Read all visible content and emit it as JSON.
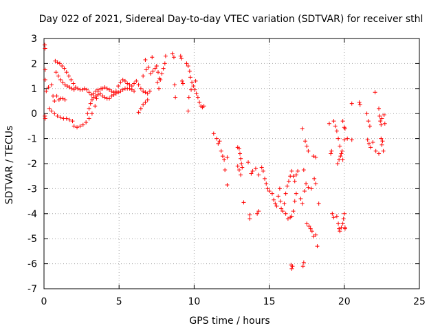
{
  "chart_data": {
    "type": "scatter",
    "title": "Day 022 of 2021, Sidereal Day-to-day VTEC variation (SDTVAR) for receiver sthl",
    "xlabel": "GPS time / hours",
    "ylabel": "SDTVAR / TECUs",
    "xlim": [
      0,
      25
    ],
    "ylim": [
      -7,
      3
    ],
    "xticks": [
      0,
      5,
      10,
      15,
      20,
      25
    ],
    "yticks": [
      -7,
      -6,
      -5,
      -4,
      -3,
      -2,
      -1,
      0,
      1,
      2,
      3
    ],
    "grid": true,
    "marker": "+",
    "series": [
      {
        "name": "SDTVAR",
        "color": "#ff0000",
        "points": [
          [
            0.05,
            2.75
          ],
          [
            0.07,
            2.6
          ],
          [
            0.08,
            1.75
          ],
          [
            0.08,
            1.35
          ],
          [
            0.06,
            -0.1
          ],
          [
            0.08,
            -0.2
          ],
          [
            0.15,
            0.9
          ],
          [
            0.3,
            1.05
          ],
          [
            0.5,
            1.15
          ],
          [
            0.6,
            0.7
          ],
          [
            0.7,
            0.5
          ],
          [
            0.85,
            0.7
          ],
          [
            1.0,
            0.55
          ],
          [
            1.1,
            0.6
          ],
          [
            1.25,
            0.6
          ],
          [
            1.4,
            0.55
          ],
          [
            0.35,
            0.2
          ],
          [
            0.5,
            0.1
          ],
          [
            0.7,
            0.0
          ],
          [
            0.9,
            -0.1
          ],
          [
            1.1,
            -0.15
          ],
          [
            1.3,
            -0.2
          ],
          [
            1.5,
            -0.2
          ],
          [
            1.7,
            -0.25
          ],
          [
            1.9,
            -0.3
          ],
          [
            2.0,
            -0.5
          ],
          [
            2.2,
            -0.55
          ],
          [
            2.4,
            -0.5
          ],
          [
            2.6,
            -0.45
          ],
          [
            2.8,
            -0.35
          ],
          [
            3.0,
            -0.2
          ],
          [
            3.2,
            0.0
          ],
          [
            3.4,
            0.3
          ],
          [
            3.5,
            0.6
          ],
          [
            3.6,
            0.9
          ],
          [
            3.8,
            1.0
          ],
          [
            0.75,
            2.1
          ],
          [
            0.9,
            2.05
          ],
          [
            1.05,
            2.0
          ],
          [
            1.2,
            1.9
          ],
          [
            1.35,
            1.8
          ],
          [
            1.5,
            1.65
          ],
          [
            1.65,
            1.5
          ],
          [
            1.8,
            1.35
          ],
          [
            1.95,
            1.2
          ],
          [
            2.1,
            1.05
          ],
          [
            2.25,
            1.0
          ],
          [
            2.4,
            0.95
          ],
          [
            2.55,
            0.95
          ],
          [
            2.7,
            1.0
          ],
          [
            2.85,
            0.95
          ],
          [
            3.0,
            0.85
          ],
          [
            3.15,
            0.75
          ],
          [
            3.3,
            0.8
          ],
          [
            3.45,
            0.9
          ],
          [
            3.6,
            0.95
          ],
          [
            0.8,
            1.65
          ],
          [
            0.95,
            1.5
          ],
          [
            1.1,
            1.35
          ],
          [
            1.25,
            1.25
          ],
          [
            1.4,
            1.15
          ],
          [
            1.55,
            1.1
          ],
          [
            1.7,
            1.05
          ],
          [
            1.85,
            1.0
          ],
          [
            2.0,
            0.95
          ],
          [
            2.9,
            0.0
          ],
          [
            3.0,
            0.2
          ],
          [
            3.1,
            0.4
          ],
          [
            3.2,
            0.55
          ],
          [
            3.3,
            0.65
          ],
          [
            3.45,
            0.7
          ],
          [
            3.6,
            0.75
          ],
          [
            3.75,
            0.8
          ],
          [
            3.9,
            0.7
          ],
          [
            4.05,
            0.65
          ],
          [
            4.2,
            0.6
          ],
          [
            4.35,
            0.6
          ],
          [
            4.5,
            0.7
          ],
          [
            4.65,
            0.75
          ],
          [
            4.8,
            0.8
          ],
          [
            4.95,
            0.85
          ],
          [
            5.1,
            0.9
          ],
          [
            5.25,
            0.95
          ],
          [
            5.4,
            1.0
          ],
          [
            5.55,
            1.0
          ],
          [
            5.7,
            1.0
          ],
          [
            5.85,
            0.95
          ],
          [
            6.0,
            0.9
          ],
          [
            3.9,
            1.0
          ],
          [
            4.05,
            1.05
          ],
          [
            4.2,
            1.0
          ],
          [
            4.35,
            0.95
          ],
          [
            4.5,
            0.9
          ],
          [
            4.65,
            0.85
          ],
          [
            4.8,
            0.9
          ],
          [
            4.95,
            1.1
          ],
          [
            5.1,
            1.25
          ],
          [
            5.25,
            1.35
          ],
          [
            5.4,
            1.3
          ],
          [
            5.55,
            1.2
          ],
          [
            5.7,
            1.15
          ],
          [
            5.85,
            1.1
          ],
          [
            6.0,
            1.2
          ],
          [
            6.15,
            1.3
          ],
          [
            6.3,
            1.15
          ],
          [
            6.45,
            1.0
          ],
          [
            6.6,
            0.9
          ],
          [
            6.75,
            0.85
          ],
          [
            6.9,
            0.8
          ],
          [
            7.05,
            0.9
          ],
          [
            6.3,
            0.05
          ],
          [
            6.45,
            0.2
          ],
          [
            6.6,
            0.35
          ],
          [
            6.75,
            0.45
          ],
          [
            6.9,
            0.55
          ],
          [
            6.6,
            1.5
          ],
          [
            6.8,
            1.75
          ],
          [
            6.95,
            1.85
          ],
          [
            7.1,
            1.6
          ],
          [
            7.25,
            1.7
          ],
          [
            7.4,
            1.8
          ],
          [
            7.5,
            1.9
          ],
          [
            7.6,
            1.65
          ],
          [
            7.7,
            1.4
          ],
          [
            7.85,
            1.6
          ],
          [
            7.95,
            1.8
          ],
          [
            8.05,
            2.0
          ],
          [
            6.75,
            2.15
          ],
          [
            7.2,
            2.25
          ],
          [
            7.55,
            1.25
          ],
          [
            7.65,
            1.0
          ],
          [
            7.75,
            1.35
          ],
          [
            8.1,
            2.3
          ],
          [
            8.55,
            2.4
          ],
          [
            8.65,
            2.25
          ],
          [
            8.7,
            1.15
          ],
          [
            8.75,
            0.65
          ],
          [
            9.1,
            2.3
          ],
          [
            9.15,
            2.2
          ],
          [
            9.2,
            1.3
          ],
          [
            9.25,
            1.2
          ],
          [
            9.5,
            2.0
          ],
          [
            9.6,
            1.9
          ],
          [
            9.7,
            1.7
          ],
          [
            9.75,
            1.45
          ],
          [
            9.85,
            1.25
          ],
          [
            9.95,
            1.1
          ],
          [
            10.05,
            0.95
          ],
          [
            10.15,
            0.8
          ],
          [
            10.25,
            0.65
          ],
          [
            10.35,
            0.45
          ],
          [
            10.45,
            0.3
          ],
          [
            10.55,
            0.25
          ],
          [
            10.65,
            0.3
          ],
          [
            9.65,
            0.65
          ],
          [
            9.8,
            0.95
          ],
          [
            10.1,
            1.3
          ],
          [
            9.6,
            0.1
          ],
          [
            11.3,
            -0.8
          ],
          [
            11.5,
            -1.0
          ],
          [
            11.6,
            -1.2
          ],
          [
            11.7,
            -1.1
          ],
          [
            11.8,
            -1.5
          ],
          [
            11.9,
            -1.7
          ],
          [
            12.0,
            -1.85
          ],
          [
            12.05,
            -2.25
          ],
          [
            12.2,
            -1.75
          ],
          [
            12.2,
            -2.85
          ],
          [
            12.9,
            -1.35
          ],
          [
            13.0,
            -1.4
          ],
          [
            13.05,
            -1.6
          ],
          [
            13.1,
            -1.8
          ],
          [
            13.15,
            -2.0
          ],
          [
            13.2,
            -2.15
          ],
          [
            12.9,
            -2.1
          ],
          [
            13.0,
            -2.25
          ],
          [
            13.1,
            -2.45
          ],
          [
            13.3,
            -3.55
          ],
          [
            13.6,
            -1.95
          ],
          [
            13.7,
            -4.05
          ],
          [
            13.7,
            -4.2
          ],
          [
            13.8,
            -2.4
          ],
          [
            13.9,
            -2.3
          ],
          [
            14.1,
            -2.2
          ],
          [
            14.3,
            -2.45
          ],
          [
            14.2,
            -4.0
          ],
          [
            14.3,
            -3.9
          ],
          [
            14.5,
            -2.15
          ],
          [
            14.6,
            -2.3
          ],
          [
            14.7,
            -2.6
          ],
          [
            14.8,
            -2.8
          ],
          [
            14.9,
            -3.0
          ],
          [
            15.0,
            -3.1
          ],
          [
            15.2,
            -3.2
          ],
          [
            15.3,
            -3.45
          ],
          [
            15.4,
            -3.6
          ],
          [
            15.5,
            -3.7
          ],
          [
            15.6,
            -3.3
          ],
          [
            15.7,
            -3.0
          ],
          [
            15.75,
            -3.5
          ],
          [
            15.8,
            -3.8
          ],
          [
            15.9,
            -3.9
          ],
          [
            16.0,
            -3.6
          ],
          [
            16.1,
            -3.2
          ],
          [
            16.2,
            -2.9
          ],
          [
            16.3,
            -2.7
          ],
          [
            16.4,
            -2.5
          ],
          [
            16.5,
            -2.3
          ],
          [
            16.6,
            -2.5
          ],
          [
            16.7,
            -2.7
          ],
          [
            16.8,
            -2.45
          ],
          [
            16.9,
            -2.3
          ],
          [
            16.1,
            -4.0
          ],
          [
            16.25,
            -4.2
          ],
          [
            16.4,
            -4.15
          ],
          [
            16.5,
            -4.1
          ],
          [
            16.6,
            -3.9
          ],
          [
            16.7,
            -3.5
          ],
          [
            16.8,
            -3.2
          ],
          [
            16.45,
            -6.05
          ],
          [
            16.5,
            -6.2
          ],
          [
            16.55,
            -6.1
          ],
          [
            17.3,
            -5.95
          ],
          [
            17.25,
            -6.1
          ],
          [
            17.2,
            -0.6
          ],
          [
            17.4,
            -1.1
          ],
          [
            17.5,
            -1.3
          ],
          [
            17.6,
            -1.5
          ],
          [
            17.45,
            -2.8
          ],
          [
            17.6,
            -2.95
          ],
          [
            17.8,
            -3.0
          ],
          [
            18.0,
            -2.6
          ],
          [
            18.1,
            -2.8
          ],
          [
            17.95,
            -1.7
          ],
          [
            18.1,
            -1.75
          ],
          [
            17.3,
            -2.25
          ],
          [
            17.35,
            -3.1
          ],
          [
            17.1,
            -3.4
          ],
          [
            17.2,
            -3.6
          ],
          [
            17.5,
            -4.4
          ],
          [
            17.65,
            -4.5
          ],
          [
            17.75,
            -4.6
          ],
          [
            17.85,
            -4.7
          ],
          [
            17.95,
            -4.9
          ],
          [
            18.1,
            -4.85
          ],
          [
            18.2,
            -5.3
          ],
          [
            18.3,
            -3.6
          ],
          [
            19.0,
            -0.4
          ],
          [
            19.1,
            -1.6
          ],
          [
            19.15,
            -1.5
          ],
          [
            19.2,
            -4.0
          ],
          [
            19.3,
            -4.15
          ],
          [
            19.3,
            -0.3
          ],
          [
            19.4,
            -0.5
          ],
          [
            19.5,
            -0.7
          ],
          [
            19.6,
            -1.0
          ],
          [
            19.7,
            -1.3
          ],
          [
            19.8,
            -1.6
          ],
          [
            19.9,
            -1.85
          ],
          [
            19.55,
            -2.0
          ],
          [
            19.65,
            -1.85
          ],
          [
            19.75,
            -1.7
          ],
          [
            19.85,
            -1.5
          ],
          [
            19.9,
            -0.3
          ],
          [
            20.0,
            -0.55
          ],
          [
            20.05,
            -0.6
          ],
          [
            20.0,
            -1.05
          ],
          [
            20.2,
            -1.0
          ],
          [
            19.5,
            -4.1
          ],
          [
            19.6,
            -4.4
          ],
          [
            19.65,
            -4.6
          ],
          [
            19.7,
            -4.7
          ],
          [
            19.8,
            -4.55
          ],
          [
            19.9,
            -4.4
          ],
          [
            19.95,
            -4.2
          ],
          [
            20.0,
            -4.0
          ],
          [
            20.05,
            -4.55
          ],
          [
            20.05,
            -4.6
          ],
          [
            20.5,
            -1.05
          ],
          [
            20.5,
            0.4
          ],
          [
            21.0,
            0.45
          ],
          [
            21.05,
            0.35
          ],
          [
            21.5,
            0.0
          ],
          [
            21.6,
            -0.3
          ],
          [
            21.7,
            -0.5
          ],
          [
            21.55,
            -1.05
          ],
          [
            21.65,
            -1.2
          ],
          [
            21.75,
            -1.35
          ],
          [
            21.9,
            -1.15
          ],
          [
            22.05,
            0.85
          ],
          [
            22.1,
            -1.5
          ],
          [
            22.3,
            -1.6
          ],
          [
            22.35,
            -0.1
          ],
          [
            22.4,
            -0.3
          ],
          [
            22.45,
            -0.45
          ],
          [
            22.5,
            -0.2
          ],
          [
            22.3,
            0.2
          ],
          [
            22.45,
            -1.0
          ],
          [
            22.5,
            -1.25
          ],
          [
            22.55,
            -1.1
          ],
          [
            22.6,
            -1.5
          ],
          [
            22.65,
            -0.05
          ],
          [
            22.7,
            -0.4
          ]
        ]
      }
    ]
  }
}
